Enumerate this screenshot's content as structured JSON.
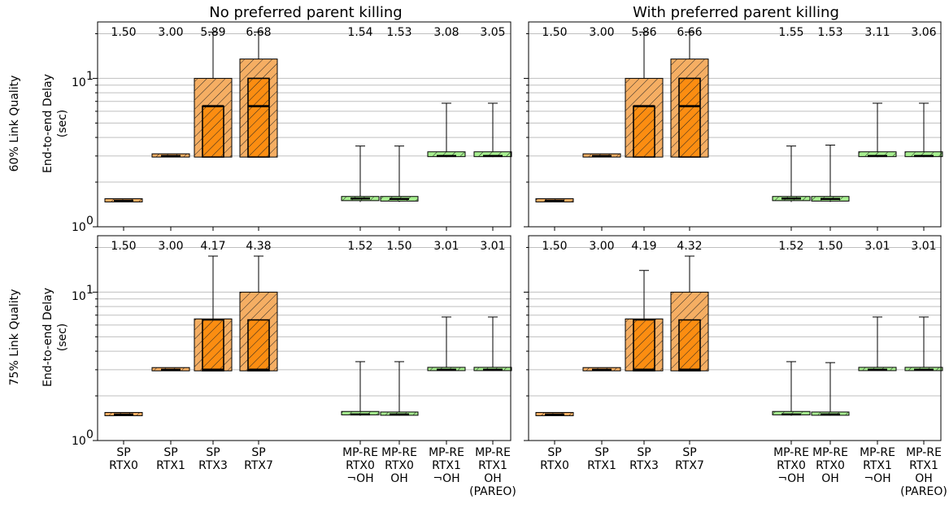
{
  "figure": {
    "col_titles": [
      "No preferred parent killing",
      "With preferred parent killing"
    ],
    "row_labels": [
      "60% Link Quality",
      "75% Link Quality"
    ],
    "ylabel_lines": [
      "End-to-end Delay",
      "(sec)"
    ],
    "ytick_labels": [
      "10",
      "10"
    ],
    "ytick_sups": [
      "0",
      "1"
    ]
  },
  "chart_data": {
    "type": "box",
    "yscale": "log",
    "ylim": [
      1,
      24
    ],
    "grid": "horizontal-major-and-minor",
    "categories": [
      {
        "lines": [
          "SP",
          "RTX0"
        ],
        "kind": "SP"
      },
      {
        "lines": [
          "SP",
          "RTX1"
        ],
        "kind": "SP"
      },
      {
        "lines": [
          "SP",
          "RTX3"
        ],
        "kind": "SP"
      },
      {
        "lines": [
          "SP",
          "RTX7"
        ],
        "kind": "SP"
      },
      {
        "lines": [
          "MP-RE",
          "RTX0",
          "¬OH"
        ],
        "kind": "MP-RE"
      },
      {
        "lines": [
          "MP-RE",
          "RTX0",
          "OH"
        ],
        "kind": "MP-RE"
      },
      {
        "lines": [
          "MP-RE",
          "RTX1",
          "¬OH"
        ],
        "kind": "MP-RE"
      },
      {
        "lines": [
          "MP-RE",
          "RTX1",
          "OH",
          "(PAREO)"
        ],
        "kind": "MP-RE"
      }
    ],
    "colors": {
      "SP": "#f5ae63",
      "MP-RE": "#a7ef90",
      "SP_inner": "#fc8d11",
      "edge": "#000000",
      "grid": "#bfbfbf"
    },
    "panels": [
      {
        "row": 0,
        "col": 0,
        "means": [
          "1.50",
          "3.00",
          "5.89",
          "6.68",
          "1.54",
          "1.53",
          "3.08",
          "3.05"
        ],
        "boxes": [
          {
            "whislo": 1.47,
            "q1": 1.47,
            "med": 1.5,
            "q3": 1.53,
            "whishi": 1.53
          },
          {
            "whislo": 2.95,
            "q1": 2.95,
            "med": 3.0,
            "q3": 3.08,
            "whishi": 3.08
          },
          {
            "whislo": 2.95,
            "q1": 2.95,
            "med": 6.5,
            "q3": 10.0,
            "whishi": 20.5,
            "inner": {
              "q1": 2.95,
              "med": 6.5,
              "q3": 6.5
            }
          },
          {
            "whislo": 2.95,
            "q1": 2.95,
            "med": 6.5,
            "q3": 13.5,
            "whishi": 20.5,
            "inner": {
              "q1": 2.95,
              "med": 6.5,
              "q3": 10.0
            }
          },
          {
            "whislo": 1.47,
            "q1": 1.5,
            "med": 1.55,
            "q3": 1.6,
            "whishi": 3.5
          },
          {
            "whislo": 1.47,
            "q1": 1.49,
            "med": 1.54,
            "q3": 1.6,
            "whishi": 3.5
          },
          {
            "whislo": 2.95,
            "q1": 2.97,
            "med": 3.0,
            "q3": 3.2,
            "whishi": 6.8
          },
          {
            "whislo": 2.95,
            "q1": 2.97,
            "med": 3.0,
            "q3": 3.2,
            "whishi": 6.8
          }
        ]
      },
      {
        "row": 0,
        "col": 1,
        "means": [
          "1.50",
          "3.00",
          "5.86",
          "6.66",
          "1.55",
          "1.53",
          "3.11",
          "3.06"
        ],
        "boxes": [
          {
            "whislo": 1.47,
            "q1": 1.47,
            "med": 1.5,
            "q3": 1.53,
            "whishi": 1.53
          },
          {
            "whislo": 2.95,
            "q1": 2.95,
            "med": 3.0,
            "q3": 3.08,
            "whishi": 3.08
          },
          {
            "whislo": 2.95,
            "q1": 2.95,
            "med": 6.5,
            "q3": 10.0,
            "whishi": 20.5,
            "inner": {
              "q1": 2.95,
              "med": 6.5,
              "q3": 6.5
            }
          },
          {
            "whislo": 2.95,
            "q1": 2.95,
            "med": 6.5,
            "q3": 13.5,
            "whishi": 20.5,
            "inner": {
              "q1": 2.95,
              "med": 6.5,
              "q3": 10.0
            }
          },
          {
            "whislo": 1.47,
            "q1": 1.5,
            "med": 1.55,
            "q3": 1.6,
            "whishi": 3.5
          },
          {
            "whislo": 1.47,
            "q1": 1.49,
            "med": 1.54,
            "q3": 1.6,
            "whishi": 3.55
          },
          {
            "whislo": 2.95,
            "q1": 2.97,
            "med": 3.0,
            "q3": 3.2,
            "whishi": 6.8
          },
          {
            "whislo": 2.95,
            "q1": 2.97,
            "med": 3.0,
            "q3": 3.2,
            "whishi": 6.8
          }
        ]
      },
      {
        "row": 1,
        "col": 0,
        "means": [
          "1.50",
          "3.00",
          "4.17",
          "4.38",
          "1.52",
          "1.50",
          "3.01",
          "3.01"
        ],
        "boxes": [
          {
            "whislo": 1.47,
            "q1": 1.47,
            "med": 1.5,
            "q3": 1.53,
            "whishi": 1.53
          },
          {
            "whislo": 2.95,
            "q1": 2.95,
            "med": 3.0,
            "q3": 3.05,
            "whishi": 3.05
          },
          {
            "whislo": 2.95,
            "q1": 2.95,
            "med": 3.0,
            "q3": 6.6,
            "whishi": 17.5,
            "inner": {
              "q1": 2.95,
              "med": 3.0,
              "q3": 6.5
            }
          },
          {
            "whislo": 2.95,
            "q1": 2.95,
            "med": 3.0,
            "q3": 10.0,
            "whishi": 17.5,
            "inner": {
              "q1": 2.95,
              "med": 3.0,
              "q3": 6.5
            }
          },
          {
            "whislo": 1.47,
            "q1": 1.49,
            "med": 1.5,
            "q3": 1.57,
            "whishi": 3.4
          },
          {
            "whislo": 1.47,
            "q1": 1.48,
            "med": 1.5,
            "q3": 1.55,
            "whishi": 3.4
          },
          {
            "whislo": 2.95,
            "q1": 2.96,
            "med": 3.0,
            "q3": 3.06,
            "whishi": 6.8
          },
          {
            "whislo": 2.95,
            "q1": 2.96,
            "med": 3.0,
            "q3": 3.06,
            "whishi": 6.8
          }
        ]
      },
      {
        "row": 1,
        "col": 1,
        "means": [
          "1.50",
          "3.00",
          "4.19",
          "4.32",
          "1.52",
          "1.50",
          "3.01",
          "3.01"
        ],
        "boxes": [
          {
            "whislo": 1.47,
            "q1": 1.47,
            "med": 1.5,
            "q3": 1.53,
            "whishi": 1.53
          },
          {
            "whislo": 2.95,
            "q1": 2.95,
            "med": 3.0,
            "q3": 3.05,
            "whishi": 3.05
          },
          {
            "whislo": 2.95,
            "q1": 2.95,
            "med": 3.0,
            "q3": 6.6,
            "whishi": 14.0,
            "inner": {
              "q1": 2.95,
              "med": 3.0,
              "q3": 6.5
            }
          },
          {
            "whislo": 2.95,
            "q1": 2.95,
            "med": 3.0,
            "q3": 10.0,
            "whishi": 17.5,
            "inner": {
              "q1": 2.95,
              "med": 3.0,
              "q3": 6.5
            }
          },
          {
            "whislo": 1.47,
            "q1": 1.49,
            "med": 1.5,
            "q3": 1.57,
            "whishi": 3.4
          },
          {
            "whislo": 1.47,
            "q1": 1.48,
            "med": 1.5,
            "q3": 1.55,
            "whishi": 3.35
          },
          {
            "whislo": 2.95,
            "q1": 2.96,
            "med": 3.0,
            "q3": 3.08,
            "whishi": 6.8
          },
          {
            "whislo": 2.95,
            "q1": 2.96,
            "med": 3.0,
            "q3": 3.06,
            "whishi": 6.8
          }
        ]
      }
    ]
  }
}
